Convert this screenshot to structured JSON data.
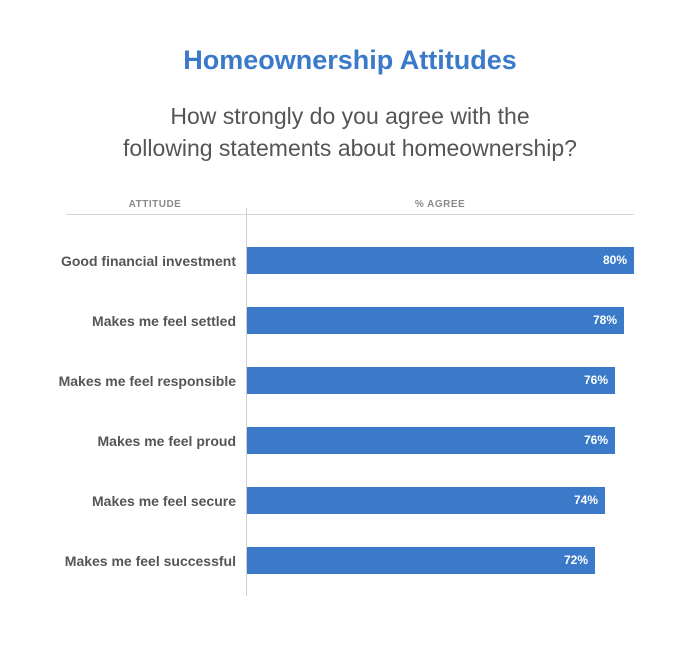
{
  "header": {
    "title": "Homeownership Attitudes",
    "subtitle_line1": "How strongly do you agree with the",
    "subtitle_line2": "following statements about homeownership?"
  },
  "columns": {
    "attitude": "ATTITUDE",
    "agree": "% AGREE"
  },
  "colors": {
    "accent": "#3a7ac9",
    "text": "#555555"
  },
  "chart_data": {
    "type": "bar",
    "orientation": "horizontal",
    "title": "Homeownership Attitudes",
    "subtitle": "How strongly do you agree with the following statements about homeownership?",
    "xlabel": "% AGREE",
    "ylabel": "ATTITUDE",
    "categories": [
      "Good financial investment",
      "Makes me feel settled",
      "Makes me feel responsible",
      "Makes me feel proud",
      "Makes me feel secure",
      "Makes me feel successful"
    ],
    "values": [
      80,
      78,
      76,
      76,
      74,
      72
    ],
    "value_labels": [
      "80%",
      "78%",
      "76%",
      "76%",
      "74%",
      "72%"
    ],
    "xlim": [
      0,
      80
    ],
    "grid": false
  }
}
